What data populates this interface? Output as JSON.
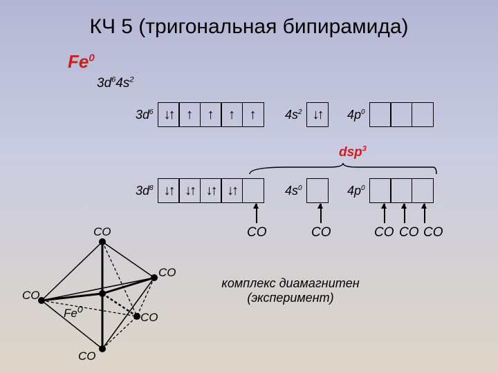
{
  "title": "КЧ 5 (тригональная бипирамида)",
  "fe_html": "Fe<sup>0</sup>",
  "config_html": "3d<sup>6</sup>4s<sup>2</sup>",
  "row1": {
    "d_label_html": "3d<sup>6</sup>",
    "d_fill": [
      "↓↑",
      "↑",
      "↑",
      "↑",
      "↑"
    ],
    "s_label_html": "4s<sup>2</sup>",
    "s_fill": [
      "↓↑"
    ],
    "p_label_html": "4p<sup>0</sup>",
    "p_fill": [
      "",
      "",
      ""
    ]
  },
  "dsp_html": "dsp<sup>3</sup>",
  "row2": {
    "d_label_html": "3d<sup>8</sup>",
    "d_fill": [
      "↓↑",
      "↓↑",
      "↓↑",
      "↓↑",
      ""
    ],
    "s_label_html": "4s<sup>0</sup>",
    "s_fill": [
      ""
    ],
    "p_label_html": "4p<sup>0</sup>",
    "p_fill": [
      "",
      "",
      ""
    ]
  },
  "co_label": "CO",
  "note": "комплекс диамагнитен (эксперимент)",
  "geom": {
    "fe_html": "Fe<sup>0</sup>",
    "ligand": "CO"
  },
  "colors": {
    "accent": "#c82020",
    "line": "#000000"
  }
}
